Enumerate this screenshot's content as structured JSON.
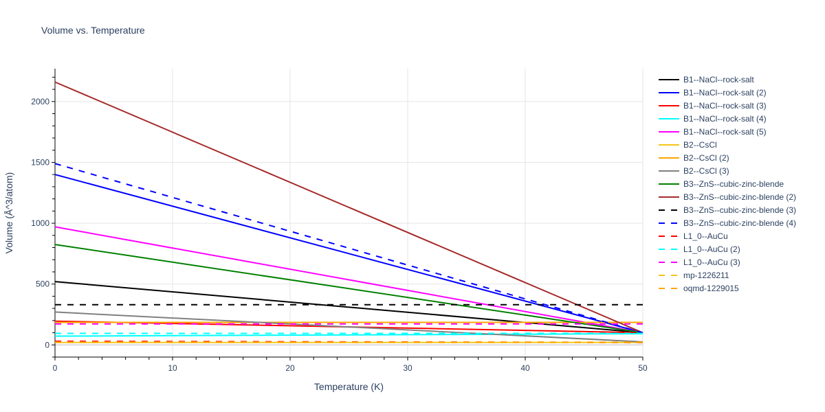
{
  "chart_data": {
    "type": "line",
    "title": "Volume vs. Temperature",
    "xlabel": "Temperature (K)",
    "ylabel": "Volume (Å^3/atom)",
    "xlim": [
      0,
      50
    ],
    "ylim": [
      -100,
      2270
    ],
    "xticks": [
      0,
      10,
      20,
      30,
      40,
      50
    ],
    "yticks": [
      0,
      500,
      1000,
      1500,
      2000
    ],
    "grid": true,
    "legend_position": "right",
    "x": [
      0,
      50
    ],
    "series": [
      {
        "name": "B1--NaCl--rock-salt",
        "color": "#000000",
        "dash": false,
        "values": [
          520,
          100
        ]
      },
      {
        "name": "B1--NaCl--rock-salt (2)",
        "color": "#0000ff",
        "dash": false,
        "values": [
          1400,
          100
        ]
      },
      {
        "name": "B1--NaCl--rock-salt (3)",
        "color": "#ff0000",
        "dash": false,
        "values": [
          195,
          100
        ]
      },
      {
        "name": "B1--NaCl--rock-salt (4)",
        "color": "#00ffff",
        "dash": false,
        "values": [
          72,
          92
        ]
      },
      {
        "name": "B1--NaCl--rock-salt (5)",
        "color": "#ff00ff",
        "dash": false,
        "values": [
          970,
          100
        ]
      },
      {
        "name": "B2--CsCl",
        "color": "#f5c518",
        "dash": false,
        "values": [
          20,
          20
        ]
      },
      {
        "name": "B2--CsCl (2)",
        "color": "#ffa500",
        "dash": false,
        "values": [
          185,
          185
        ]
      },
      {
        "name": "B2--CsCl (3)",
        "color": "#808080",
        "dash": false,
        "values": [
          270,
          25
        ]
      },
      {
        "name": "B3--ZnS--cubic-zinc-blende",
        "color": "#008000",
        "dash": false,
        "values": [
          825,
          100
        ]
      },
      {
        "name": "B3--ZnS--cubic-zinc-blende (2)",
        "color": "#a52a2a",
        "dash": false,
        "values": [
          2160,
          100
        ]
      },
      {
        "name": "B3--ZnS--cubic-zinc-blende (3)",
        "color": "#000000",
        "dash": true,
        "values": [
          330,
          330
        ]
      },
      {
        "name": "B3--ZnS--cubic-zinc-blende (4)",
        "color": "#0000ff",
        "dash": true,
        "values": [
          1490,
          100
        ]
      },
      {
        "name": "L1_0--AuCu",
        "color": "#ff0000",
        "dash": true,
        "values": [
          30,
          20
        ]
      },
      {
        "name": "L1_0--AuCu (2)",
        "color": "#00ffff",
        "dash": true,
        "values": [
          95,
          95
        ]
      },
      {
        "name": "L1_0--AuCu (3)",
        "color": "#ff00ff",
        "dash": true,
        "values": [
          172,
          172
        ]
      },
      {
        "name": "mp-1226211",
        "color": "#f5c518",
        "dash": true,
        "values": [
          22,
          22
        ]
      },
      {
        "name": "oqmd-1229015",
        "color": "#ffa500",
        "dash": true,
        "values": [
          22,
          22
        ]
      }
    ]
  }
}
